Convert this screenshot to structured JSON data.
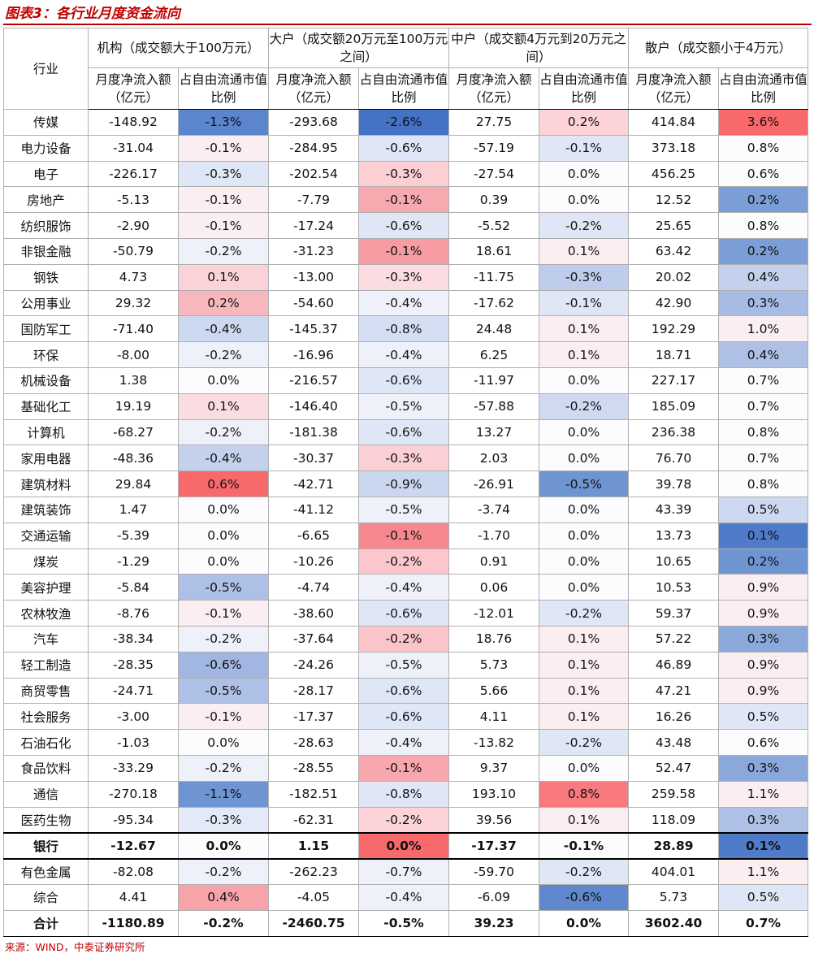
{
  "title": "图表3：各行业月度资金流向",
  "source": "来源：WIND，中泰证券研究所",
  "header": {
    "industry": "行业",
    "groups": [
      "机构（成交额大于100万元）",
      "大户（成交额20万元至100万元之间）",
      "中户（成交额4万元到20万元之间）",
      "散户（成交额小于4万元）"
    ],
    "sub": [
      "月度净流入额（亿元）",
      "占自由流通市值比例"
    ]
  },
  "colors": {
    "neg_strong": "#4472c4",
    "pos_strong": "#f8696b",
    "neutral": "#fcfcff"
  },
  "rows": [
    {
      "name": "传媒",
      "v": [
        "-148.92",
        "-1.3%",
        "-293.68",
        "-2.6%",
        "27.75",
        "0.2%",
        "414.84",
        "3.6%"
      ]
    },
    {
      "name": "电力设备",
      "v": [
        "-31.04",
        "-0.1%",
        "-284.95",
        "-0.6%",
        "-57.19",
        "-0.1%",
        "373.18",
        "0.8%"
      ]
    },
    {
      "name": "电子",
      "v": [
        "-226.17",
        "-0.3%",
        "-202.54",
        "-0.3%",
        "-27.54",
        "0.0%",
        "456.25",
        "0.6%"
      ]
    },
    {
      "name": "房地产",
      "v": [
        "-5.13",
        "-0.1%",
        "-7.79",
        "-0.1%",
        "0.39",
        "0.0%",
        "12.52",
        "0.2%"
      ]
    },
    {
      "name": "纺织服饰",
      "v": [
        "-2.90",
        "-0.1%",
        "-17.24",
        "-0.6%",
        "-5.52",
        "-0.2%",
        "25.65",
        "0.8%"
      ]
    },
    {
      "name": "非银金融",
      "v": [
        "-50.79",
        "-0.2%",
        "-31.23",
        "-0.1%",
        "18.61",
        "0.1%",
        "63.42",
        "0.2%"
      ]
    },
    {
      "name": "钢铁",
      "v": [
        "4.73",
        "0.1%",
        "-13.00",
        "-0.3%",
        "-11.75",
        "-0.3%",
        "20.02",
        "0.4%"
      ]
    },
    {
      "name": "公用事业",
      "v": [
        "29.32",
        "0.2%",
        "-54.60",
        "-0.4%",
        "-17.62",
        "-0.1%",
        "42.90",
        "0.3%"
      ]
    },
    {
      "name": "国防军工",
      "v": [
        "-71.40",
        "-0.4%",
        "-145.37",
        "-0.8%",
        "24.48",
        "0.1%",
        "192.29",
        "1.0%"
      ]
    },
    {
      "name": "环保",
      "v": [
        "-8.00",
        "-0.2%",
        "-16.96",
        "-0.4%",
        "6.25",
        "0.1%",
        "18.71",
        "0.4%"
      ]
    },
    {
      "name": "机械设备",
      "v": [
        "1.38",
        "0.0%",
        "-216.57",
        "-0.6%",
        "-11.97",
        "0.0%",
        "227.17",
        "0.7%"
      ]
    },
    {
      "name": "基础化工",
      "v": [
        "19.19",
        "0.1%",
        "-146.40",
        "-0.5%",
        "-57.88",
        "-0.2%",
        "185.09",
        "0.7%"
      ]
    },
    {
      "name": "计算机",
      "v": [
        "-68.27",
        "-0.2%",
        "-181.38",
        "-0.6%",
        "13.27",
        "0.0%",
        "236.38",
        "0.8%"
      ]
    },
    {
      "name": "家用电器",
      "v": [
        "-48.36",
        "-0.4%",
        "-30.37",
        "-0.3%",
        "2.03",
        "0.0%",
        "76.70",
        "0.7%"
      ]
    },
    {
      "name": "建筑材料",
      "v": [
        "29.84",
        "0.6%",
        "-42.71",
        "-0.9%",
        "-26.91",
        "-0.5%",
        "39.78",
        "0.8%"
      ]
    },
    {
      "name": "建筑装饰",
      "v": [
        "1.47",
        "0.0%",
        "-41.12",
        "-0.5%",
        "-3.74",
        "0.0%",
        "43.39",
        "0.5%"
      ]
    },
    {
      "name": "交通运输",
      "v": [
        "-5.39",
        "0.0%",
        "-6.65",
        "-0.1%",
        "-1.70",
        "0.0%",
        "13.73",
        "0.1%"
      ]
    },
    {
      "name": "煤炭",
      "v": [
        "-1.29",
        "0.0%",
        "-10.26",
        "-0.2%",
        "0.91",
        "0.0%",
        "10.65",
        "0.2%"
      ]
    },
    {
      "name": "美容护理",
      "v": [
        "-5.84",
        "-0.5%",
        "-4.74",
        "-0.4%",
        "0.06",
        "0.0%",
        "10.53",
        "0.9%"
      ]
    },
    {
      "name": "农林牧渔",
      "v": [
        "-8.76",
        "-0.1%",
        "-38.60",
        "-0.6%",
        "-12.01",
        "-0.2%",
        "59.37",
        "0.9%"
      ]
    },
    {
      "name": "汽车",
      "v": [
        "-38.34",
        "-0.2%",
        "-37.64",
        "-0.2%",
        "18.76",
        "0.1%",
        "57.22",
        "0.3%"
      ]
    },
    {
      "name": "轻工制造",
      "v": [
        "-28.35",
        "-0.6%",
        "-24.26",
        "-0.5%",
        "5.73",
        "0.1%",
        "46.89",
        "0.9%"
      ]
    },
    {
      "name": "商贸零售",
      "v": [
        "-24.71",
        "-0.5%",
        "-28.17",
        "-0.6%",
        "5.66",
        "0.1%",
        "47.21",
        "0.9%"
      ]
    },
    {
      "name": "社会服务",
      "v": [
        "-3.00",
        "-0.1%",
        "-17.37",
        "-0.6%",
        "4.11",
        "0.1%",
        "16.26",
        "0.5%"
      ]
    },
    {
      "name": "石油石化",
      "v": [
        "-1.03",
        "0.0%",
        "-28.63",
        "-0.4%",
        "-13.82",
        "-0.2%",
        "43.48",
        "0.6%"
      ]
    },
    {
      "name": "食品饮料",
      "v": [
        "-33.29",
        "-0.2%",
        "-28.55",
        "-0.1%",
        "9.37",
        "0.0%",
        "52.47",
        "0.3%"
      ]
    },
    {
      "name": "通信",
      "v": [
        "-270.18",
        "-1.1%",
        "-182.51",
        "-0.8%",
        "193.10",
        "0.8%",
        "259.58",
        "1.1%"
      ]
    },
    {
      "name": "医药生物",
      "v": [
        "-95.34",
        "-0.3%",
        "-62.31",
        "-0.2%",
        "39.56",
        "0.1%",
        "118.09",
        "0.3%"
      ]
    },
    {
      "name": "银行",
      "v": [
        "-12.67",
        "0.0%",
        "1.15",
        "0.0%",
        "-17.37",
        "-0.1%",
        "28.89",
        "0.1%"
      ],
      "style": "bold"
    },
    {
      "name": "有色金属",
      "v": [
        "-82.08",
        "-0.2%",
        "-262.23",
        "-0.7%",
        "-59.70",
        "-0.2%",
        "404.01",
        "1.1%"
      ]
    },
    {
      "name": "综合",
      "v": [
        "4.41",
        "0.4%",
        "-4.05",
        "-0.4%",
        "-6.09",
        "-0.6%",
        "5.73",
        "0.5%"
      ]
    },
    {
      "name": "合计",
      "v": [
        "-1180.89",
        "-0.2%",
        "-2460.75",
        "-0.5%",
        "39.23",
        "0.0%",
        "3602.40",
        "0.7%"
      ],
      "style": "total"
    }
  ],
  "pct_colors": {
    "inst": [
      "#5b85cc",
      "#fbeef1",
      "#dfe6f5",
      "#fbeef1",
      "#fbeef1",
      "#eef1fa",
      "#fad2d7",
      "#f8b6bd",
      "#cdd9f0",
      "#eef1fa",
      "#fcfcff",
      "#fbdde1",
      "#eef1fa",
      "#c4d1ed",
      "#f8696b",
      "#fcfcff",
      "#fcfcff",
      "#fcfcff",
      "#aec0e6",
      "#fbeef1",
      "#eef1fa",
      "#a1b6e1",
      "#aec0e6",
      "#fbeef1",
      "#fcfcff",
      "#eef1fa",
      "#6e94d2",
      "#e3e9f6",
      "#fcfcff",
      "#eef1fa",
      "#f8a3aa"
    ],
    "big": [
      "#4472c4",
      "#dfe6f5",
      "#fbcfd4",
      "#f8a9b0",
      "#dfe6f5",
      "#f89ca4",
      "#fbdde1",
      "#eef1fa",
      "#d5dff3",
      "#eef1fa",
      "#dfe6f5",
      "#eef1fa",
      "#dfe6f5",
      "#fbd0d5",
      "#cbd7ef",
      "#eef1fa",
      "#f8888f",
      "#fbc7cd",
      "#eef1fa",
      "#dfe6f5",
      "#fbc4ca",
      "#eef1fa",
      "#dfe6f5",
      "#dfe6f5",
      "#eef1fa",
      "#f8a7ae",
      "#dfe6f5",
      "#fbd3d8",
      "#f8696b",
      "#eef1fa",
      "#eef1fa"
    ],
    "mid": [
      "#fbd3d8",
      "#dfe6f5",
      "#fcfcff",
      "#fcfcff",
      "#dfe6f5",
      "#fbeef1",
      "#bfcdec",
      "#dfe6f5",
      "#fbeef1",
      "#fbeef1",
      "#fcfcff",
      "#cfdaf1",
      "#fcfcff",
      "#fcfcff",
      "#6e94d2",
      "#fcfcff",
      "#fcfcff",
      "#fcfcff",
      "#fcfcff",
      "#dfe6f5",
      "#fbeef1",
      "#fbeef1",
      "#fbeef1",
      "#fbeef1",
      "#dfe6f5",
      "#fcfcff",
      "#f87a7f",
      "#fbeef1",
      "#fcfcff",
      "#dfe6f5",
      "#6088ce"
    ],
    "ret": [
      "#f8696b",
      "#fcfcff",
      "#fcfcff",
      "#7b9ed6",
      "#fcfcff",
      "#7b9ed6",
      "#c4d1ed",
      "#a8bbe4",
      "#fbeef1",
      "#aec0e6",
      "#fcfcff",
      "#fcfcff",
      "#fcfcff",
      "#fcfcff",
      "#fcfcff",
      "#cdd9f0",
      "#4f7bc9",
      "#6e94d2",
      "#fbeef1",
      "#fbeef1",
      "#8aa8da",
      "#fbeef1",
      "#fbeef1",
      "#dfe6f5",
      "#fcfcff",
      "#8aa8da",
      "#fbeef1",
      "#aec0e6",
      "#4f7bc9",
      "#fbeef1",
      "#dfe6f5"
    ]
  }
}
